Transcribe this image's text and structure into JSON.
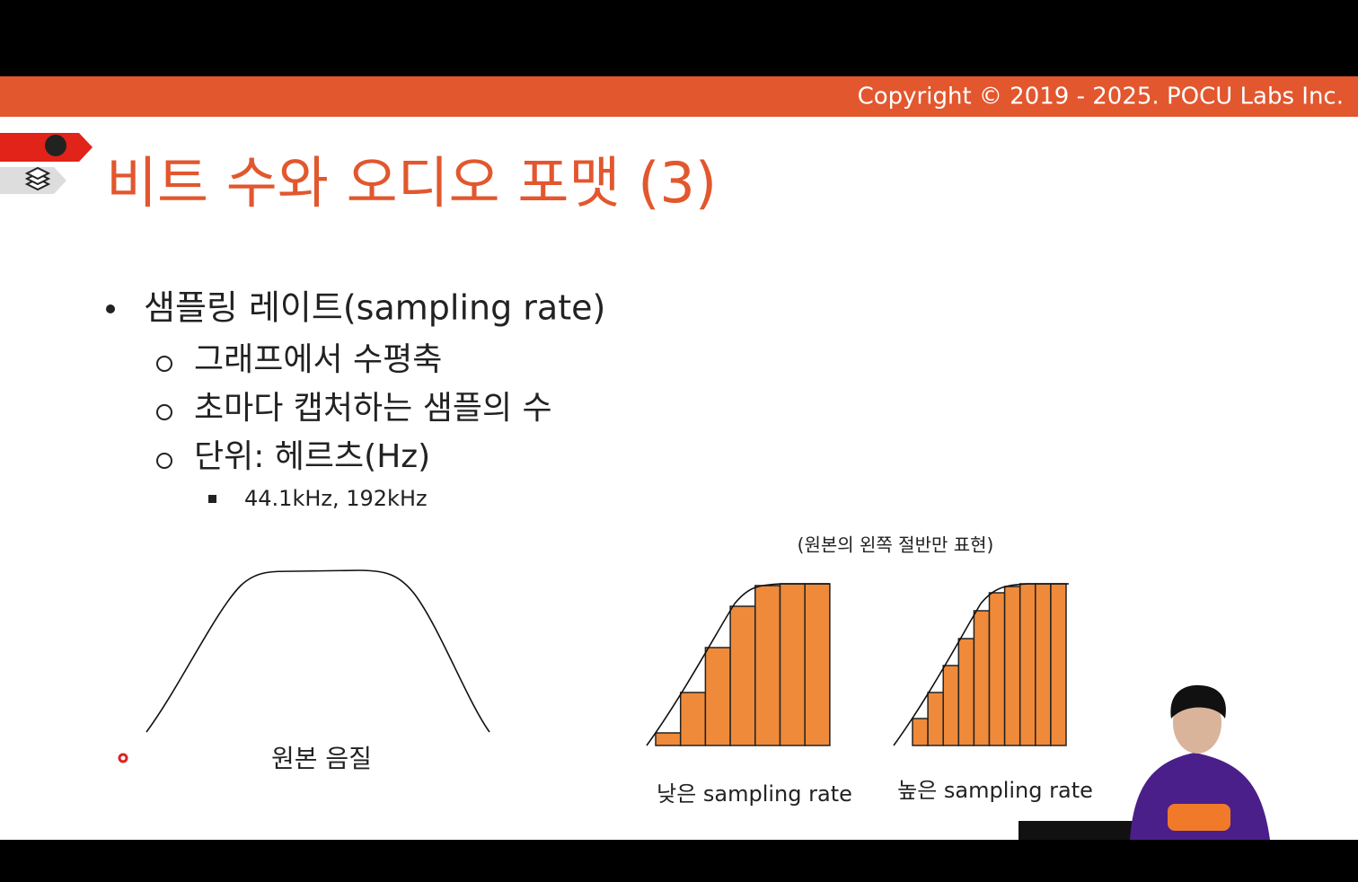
{
  "header": {
    "copyright": "Copyright © 2019 - 2025. POCU Labs Inc."
  },
  "slide": {
    "title": "비트 수와 오디오 포맷 (3)",
    "bullet": "샘플링 레이트(sampling rate)",
    "sub_bullets": [
      "그래프에서 수평축",
      "초마다 캡처하는 샘플의 수",
      "단위: 헤르츠(Hz)"
    ],
    "sub_sub_bullets": [
      "44.1kHz, 192kHz"
    ],
    "figures": {
      "note": "(원본의 왼쪽 절반만 표현)",
      "original_caption": "원본 음질",
      "low_caption": "낮은 sampling rate",
      "high_caption": "높은 sampling rate"
    }
  }
}
